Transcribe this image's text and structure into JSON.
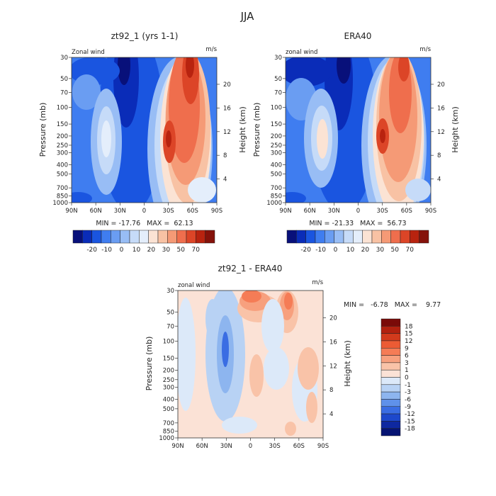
{
  "page": {
    "main_title": "JJA"
  },
  "chart_data": [
    {
      "type": "heatmap",
      "id": "model",
      "title": "zt92_1 (yrs 1-1)",
      "label_left": "Zonal wind",
      "units": "m/s",
      "xlabel": "",
      "ylabel": "Pressure (mb)",
      "ylabel_right": "Height (km)",
      "x_ticks": [
        "90N",
        "60N",
        "30N",
        "0",
        "30S",
        "60S",
        "90S"
      ],
      "y_ticks": [
        "30",
        "50",
        "70",
        "100",
        "150",
        "200",
        "250",
        "300",
        "400",
        "500",
        "700",
        "850",
        "1000"
      ],
      "y_ticks_right": [
        "20",
        "16",
        "12",
        "8",
        "4"
      ],
      "stats_text": "MIN = -17.76   MAX =  62.13",
      "min": -17.76,
      "max": 62.13,
      "colorbar_labels": [
        "-20",
        "-10",
        "0",
        "10",
        "20",
        "30",
        "50",
        "70"
      ]
    },
    {
      "type": "heatmap",
      "id": "era40",
      "title": "ERA40",
      "label_left": "zonal wind",
      "units": "m/s",
      "xlabel": "",
      "ylabel": "Pressure (mb)",
      "ylabel_right": "Height (km)",
      "x_ticks": [
        "90N",
        "60N",
        "30N",
        "0",
        "30S",
        "60S",
        "90S"
      ],
      "y_ticks": [
        "30",
        "50",
        "70",
        "100",
        "150",
        "200",
        "250",
        "300",
        "400",
        "500",
        "700",
        "850",
        "1000"
      ],
      "y_ticks_right": [
        "20",
        "16",
        "12",
        "8",
        "4"
      ],
      "stats_text": "MIN = -21.33   MAX =  56.73",
      "min": -21.33,
      "max": 56.73,
      "colorbar_labels": [
        "-20",
        "-10",
        "0",
        "10",
        "20",
        "30",
        "50",
        "70"
      ]
    },
    {
      "type": "heatmap",
      "id": "diff",
      "title": "zt92_1 - ERA40",
      "label_left": "zonal wind",
      "units": "m/s",
      "xlabel": "",
      "ylabel": "Pressure (mb)",
      "ylabel_right": "Height (km)",
      "x_ticks": [
        "90N",
        "60N",
        "30N",
        "0",
        "30S",
        "60S",
        "90S"
      ],
      "y_ticks": [
        "30",
        "50",
        "70",
        "100",
        "150",
        "200",
        "250",
        "300",
        "400",
        "500",
        "700",
        "850",
        "1000"
      ],
      "y_ticks_right": [
        "20",
        "16",
        "12",
        "8",
        "4"
      ],
      "stats_text": "MIN =   -6.78   MAX =    9.77",
      "min": -6.78,
      "max": 9.77,
      "colorbar_labels": [
        "18",
        "15",
        "12",
        "9",
        "6",
        "3",
        "1",
        "0",
        "-1",
        "-3",
        "-6",
        "-9",
        "-12",
        "-15",
        "-18"
      ]
    }
  ],
  "colors": {
    "top_scale": [
      "#08107a",
      "#0a2cb8",
      "#1a55e0",
      "#3f7df0",
      "#6a9df2",
      "#98bdf5",
      "#c6dbf8",
      "#e4eefb",
      "#fbe3d4",
      "#f8c2a4",
      "#f59a76",
      "#ef6e4d",
      "#dc4527",
      "#b8230f",
      "#85120a"
    ],
    "diff_scale": [
      "#7a0a08",
      "#b2210f",
      "#d23a1c",
      "#ec5b34",
      "#f57c56",
      "#f7a07e",
      "#f9c3a8",
      "#fbe2d6",
      "#dce9f9",
      "#b8d2f4",
      "#8db5ef",
      "#5f91ea",
      "#3a6de3",
      "#1d48cc",
      "#0e28a0",
      "#061473"
    ]
  }
}
